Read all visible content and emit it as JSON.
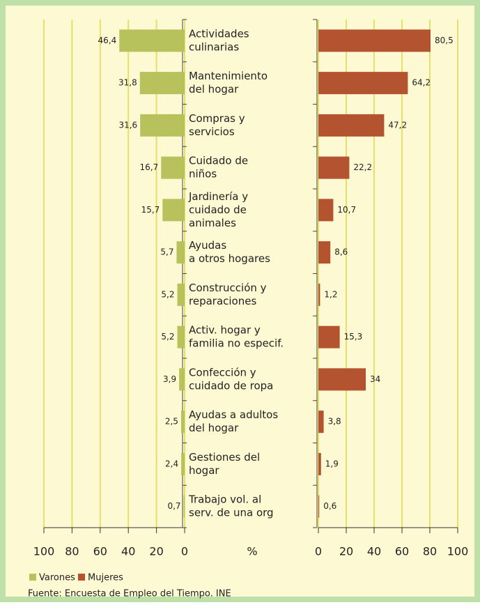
{
  "chart_data": {
    "type": "butterfly",
    "categories": [
      [
        "Actividades",
        "culinarias"
      ],
      [
        "Mantenimiento",
        "del hogar"
      ],
      [
        "Compras y",
        "servicios"
      ],
      [
        "Cuidado de",
        "niños"
      ],
      [
        "Jardinería y",
        "cuidado de",
        "animales"
      ],
      [
        "Ayudas",
        "a otros hogares"
      ],
      [
        "Construcción y",
        "reparaciones"
      ],
      [
        "Activ. hogar y",
        "familia no especif."
      ],
      [
        "Confección y",
        "cuidado de ropa"
      ],
      [
        "Ayudas a adultos",
        "del hogar"
      ],
      [
        "Gestiones del",
        "hogar"
      ],
      [
        "Trabajo vol. al",
        "serv. de una org"
      ]
    ],
    "series": [
      {
        "name": "Varones",
        "color": "#b8c25c",
        "side": "left",
        "values": [
          46.4,
          31.8,
          31.6,
          16.7,
          15.7,
          5.7,
          5.2,
          5.2,
          3.9,
          2.5,
          2.4,
          0.7
        ],
        "value_labels": [
          "46,4",
          "31,8",
          "31,6",
          "16,7",
          "15,7",
          "5,7",
          "5,2",
          "5,2",
          "3,9",
          "2,5",
          "2,4",
          "0,7"
        ]
      },
      {
        "name": "Mujeres",
        "color": "#b4532f",
        "side": "right",
        "values": [
          80.5,
          64.2,
          47.2,
          22.2,
          10.7,
          8.6,
          1.2,
          15.3,
          34,
          3.8,
          1.9,
          0.6
        ],
        "value_labels": [
          "80,5",
          "64,2",
          "47,2",
          "22,2",
          "10,7",
          "8,6",
          "1,2",
          "15,3",
          "34",
          "3,8",
          "1,9",
          "0,6"
        ]
      }
    ],
    "xlim": [
      0,
      100
    ],
    "xticks": [
      0,
      20,
      40,
      60,
      80,
      100
    ],
    "grid": true,
    "xlabel": "%",
    "source": "Fuente: Encuesta de Empleo del Tiempo. INE"
  }
}
